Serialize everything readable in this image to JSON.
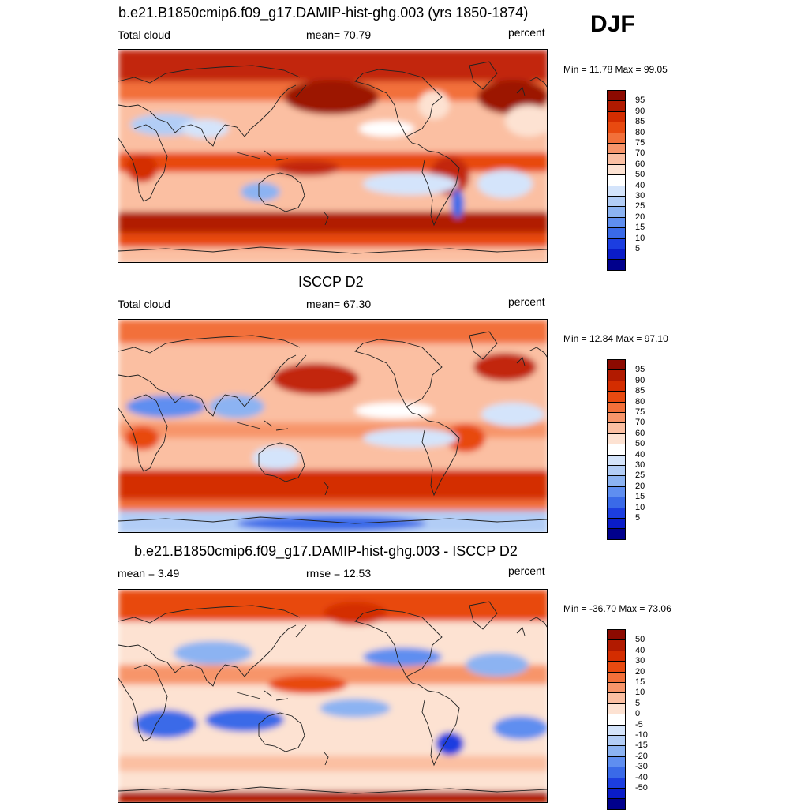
{
  "season": "DJF",
  "units": "percent",
  "panels": [
    {
      "title": "b.e21.B1850cmip6.f09_g17.DAMIP-hist-ghg.003 (yrs 1850-1874)",
      "left_label": "Total cloud",
      "center_label": "mean=  70.79",
      "right_label": "percent",
      "minmax": "Min =  11.78 Max =  99.05",
      "colorbar": {
        "labels": [
          "95",
          "90",
          "85",
          "80",
          "75",
          "70",
          "60",
          "50",
          "40",
          "30",
          "25",
          "20",
          "15",
          "10",
          "5"
        ],
        "colors": [
          "#8c0a00",
          "#b11a00",
          "#d42d00",
          "#e84a10",
          "#f2703a",
          "#f7956a",
          "#fbbfa2",
          "#fde2d2",
          "#ffffff",
          "#d4e4fb",
          "#b2cdf6",
          "#8cb3f2",
          "#5f8ef0",
          "#3a6ae8",
          "#1c3ee0",
          "#0a1cc8",
          "#00008c"
        ]
      },
      "layout": "model"
    },
    {
      "title": "ISCCP D2",
      "left_label": "Total cloud",
      "center_label": "mean=  67.30",
      "right_label": "percent",
      "minmax": "Min =  12.84 Max =  97.10",
      "colorbar": {
        "labels": [
          "95",
          "90",
          "85",
          "80",
          "75",
          "70",
          "60",
          "50",
          "40",
          "30",
          "25",
          "20",
          "15",
          "10",
          "5"
        ],
        "colors": [
          "#8c0a00",
          "#b11a00",
          "#d42d00",
          "#e84a10",
          "#f2703a",
          "#f7956a",
          "#fbbfa2",
          "#fde2d2",
          "#ffffff",
          "#d4e4fb",
          "#b2cdf6",
          "#8cb3f2",
          "#5f8ef0",
          "#3a6ae8",
          "#1c3ee0",
          "#0a1cc8",
          "#00008c"
        ]
      },
      "layout": "obs"
    },
    {
      "title": "b.e21.B1850cmip6.f09_g17.DAMIP-hist-ghg.003 - ISCCP D2",
      "left_label": "mean =   3.49",
      "center_label": "rmse =  12.53",
      "right_label": "percent",
      "minmax": "Min = -36.70 Max =  73.06",
      "colorbar": {
        "labels": [
          "50",
          "40",
          "30",
          "20",
          "15",
          "10",
          "5",
          "0",
          "-5",
          "-10",
          "-15",
          "-20",
          "-30",
          "-40",
          "-50"
        ],
        "colors": [
          "#8c0a00",
          "#b11a00",
          "#d42d00",
          "#e84a10",
          "#f2703a",
          "#f7956a",
          "#fbbfa2",
          "#fde2d2",
          "#ffffff",
          "#d4e4fb",
          "#b2cdf6",
          "#8cb3f2",
          "#5f8ef0",
          "#3a6ae8",
          "#1c3ee0",
          "#0a1cc8",
          "#00008c"
        ]
      },
      "layout": "diff"
    }
  ]
}
